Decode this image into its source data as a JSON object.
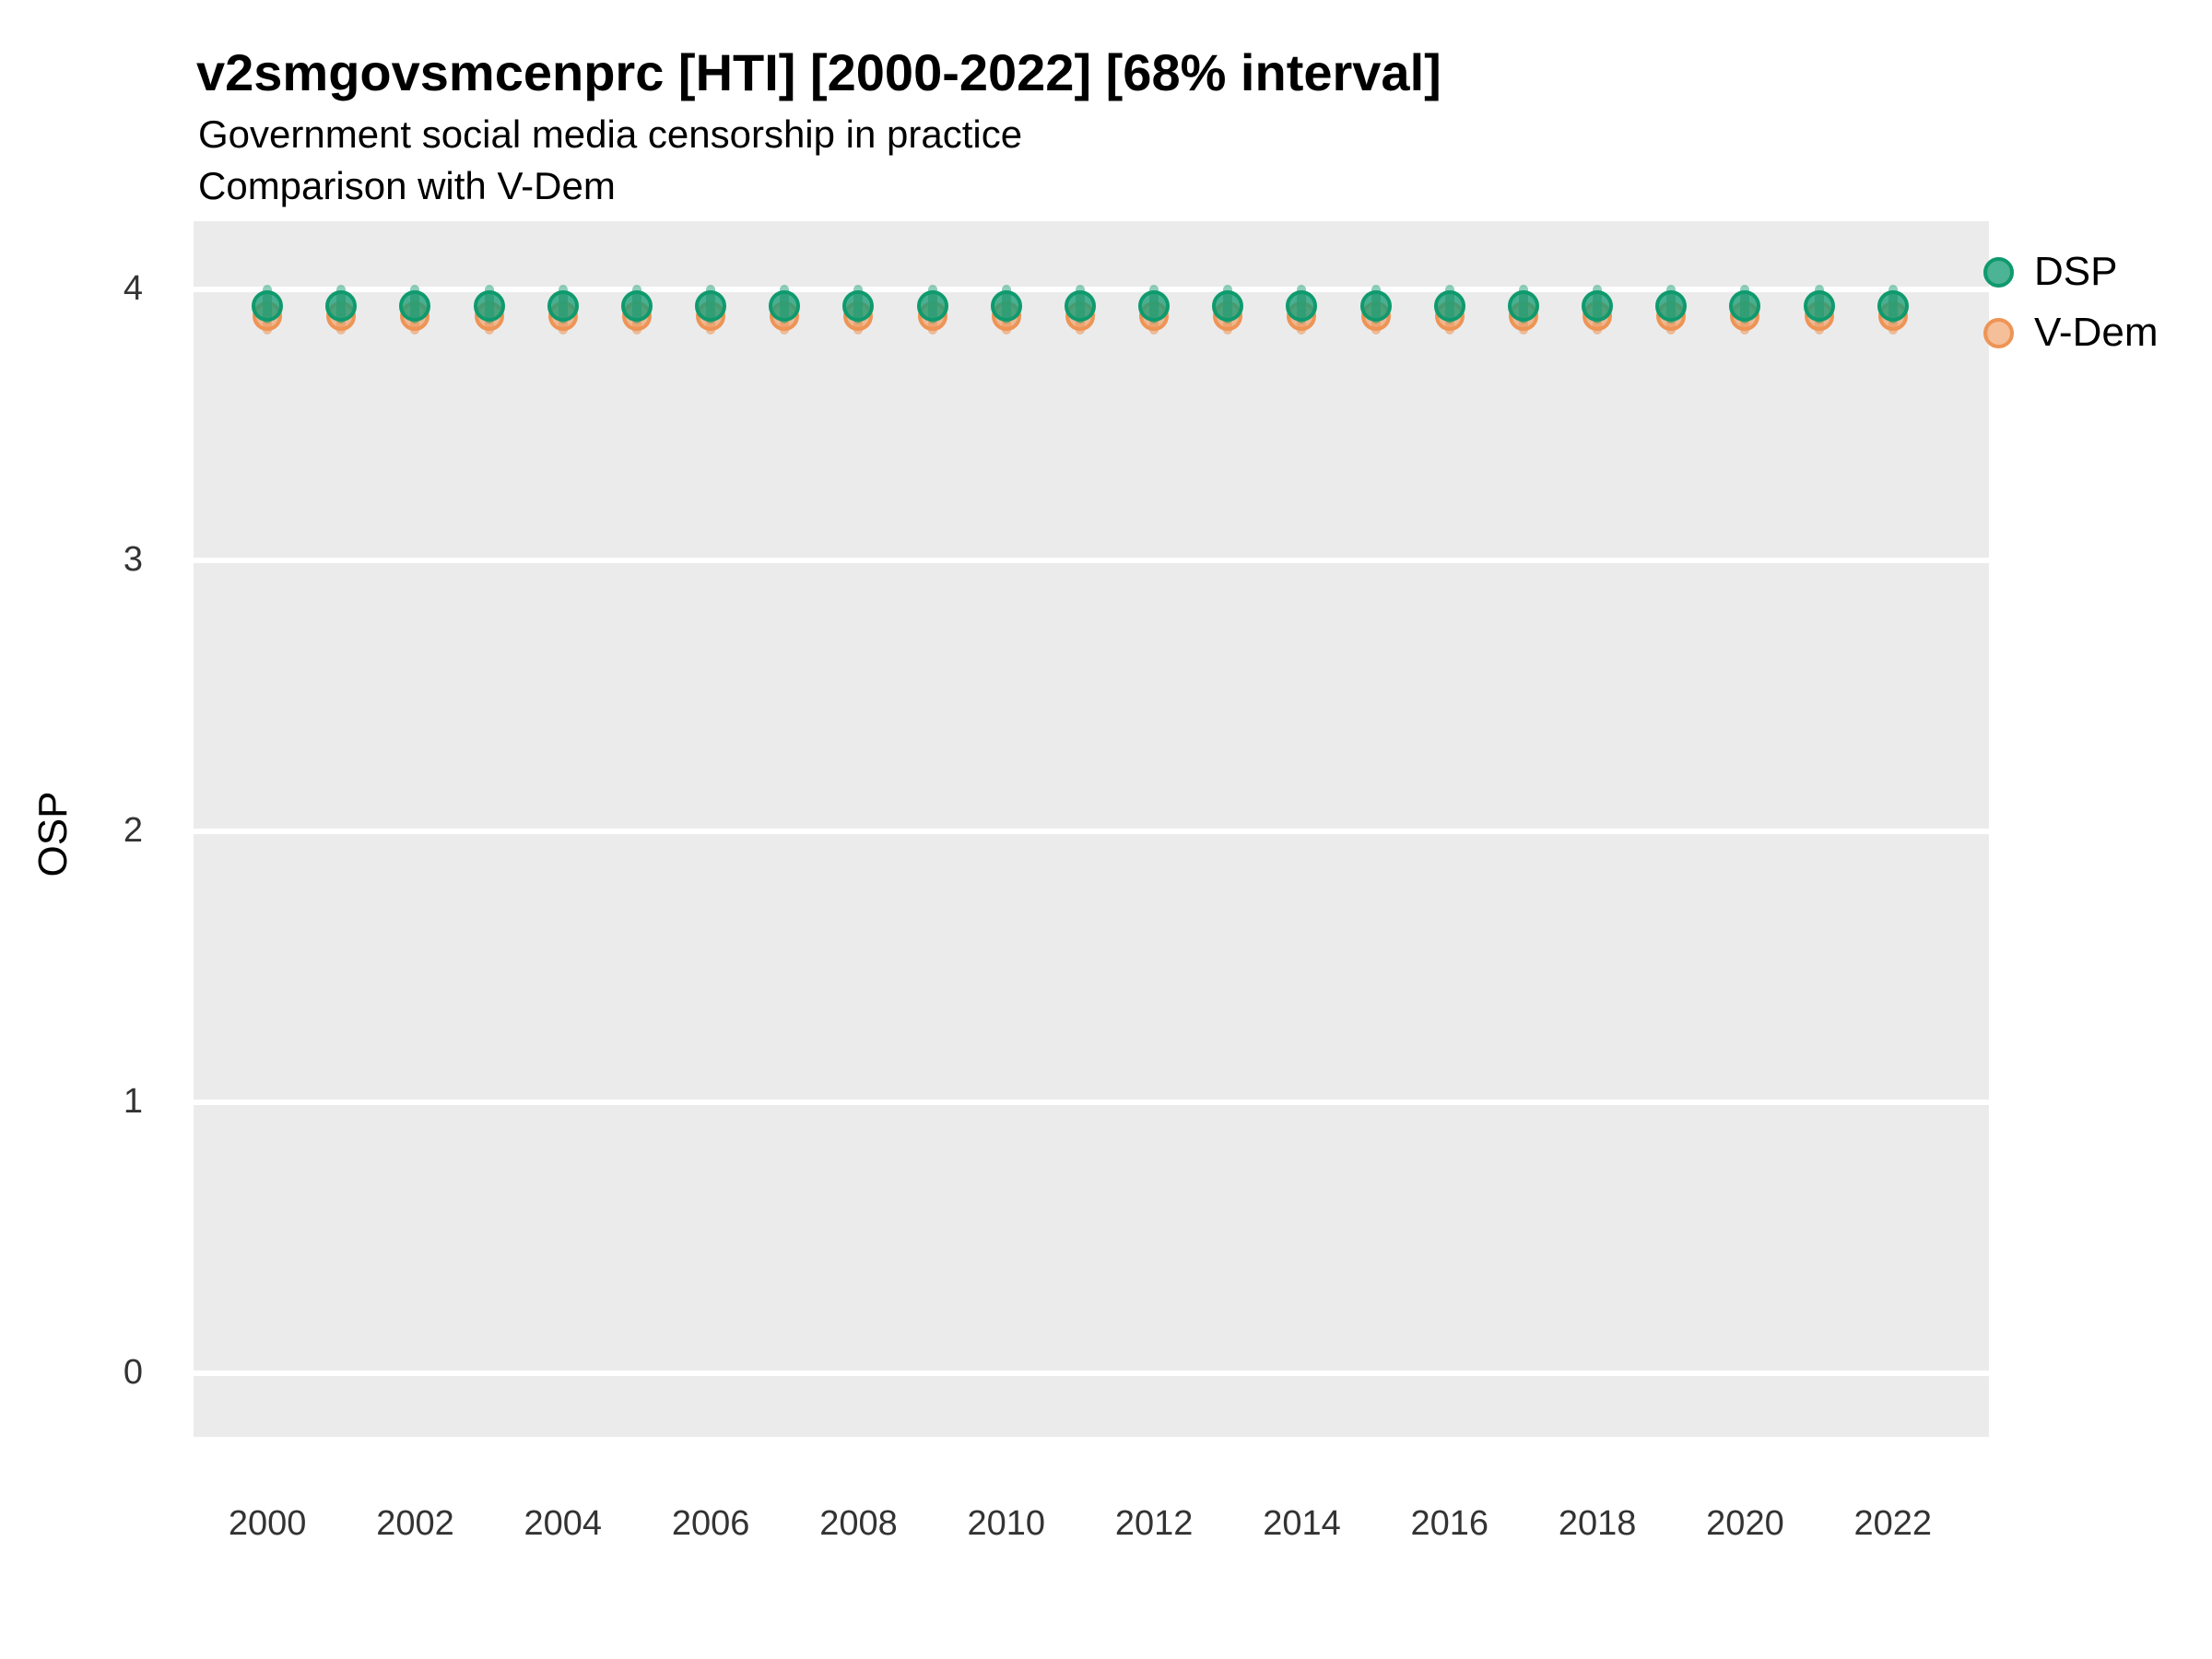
{
  "title": "v2smgovsmcenprc [HTI] [2000-2022] [68% interval]",
  "subtitle_line1": "Government social media censorship in practice",
  "subtitle_line2": "Comparison with V-Dem",
  "y_axis_label": "OSP",
  "legend": {
    "items": [
      {
        "label": "DSP",
        "key": "dsp"
      },
      {
        "label": "V-Dem",
        "key": "vdem"
      }
    ]
  },
  "colors": {
    "panel_bg": "#EBEBEB",
    "grid": "#FFFFFF",
    "title_text": "#000000",
    "tick_text": "#333333",
    "dsp_stroke": "#0F9A6D",
    "dsp_fill": "rgba(27,158,119,0.78)",
    "dsp_interval": "rgba(27,158,119,0.5)",
    "vdem_stroke": "#EE9455",
    "vdem_fill": "rgba(238,148,85,0.6)",
    "vdem_interval": "rgba(236,147,84,0.55)"
  },
  "chart_data": {
    "type": "scatter",
    "title": "v2smgovsmcenprc [HTI] [2000-2022] [68% interval]",
    "subtitle": [
      "Government social media censorship in practice",
      "Comparison with V-Dem"
    ],
    "xlabel": "",
    "ylabel": "OSP",
    "x": [
      2000,
      2001,
      2002,
      2003,
      2004,
      2005,
      2006,
      2007,
      2008,
      2009,
      2010,
      2011,
      2012,
      2013,
      2014,
      2015,
      2016,
      2017,
      2018,
      2019,
      2020,
      2021,
      2022
    ],
    "series": [
      {
        "name": "DSP",
        "key": "dsp",
        "values": [
          3.94,
          3.94,
          3.94,
          3.94,
          3.94,
          3.94,
          3.94,
          3.94,
          3.94,
          3.94,
          3.94,
          3.94,
          3.94,
          3.94,
          3.94,
          3.94,
          3.94,
          3.94,
          3.94,
          3.94,
          3.94,
          3.94,
          3.94
        ],
        "lower": [
          3.89,
          3.89,
          3.89,
          3.89,
          3.89,
          3.89,
          3.89,
          3.89,
          3.89,
          3.89,
          3.89,
          3.89,
          3.89,
          3.89,
          3.89,
          3.89,
          3.89,
          3.89,
          3.89,
          3.89,
          3.89,
          3.89,
          3.89
        ],
        "upper": [
          4.0,
          4.0,
          4.0,
          4.0,
          4.0,
          4.0,
          4.0,
          4.0,
          4.0,
          4.0,
          4.0,
          4.0,
          4.0,
          4.0,
          4.0,
          4.0,
          4.0,
          4.0,
          4.0,
          4.0,
          4.0,
          4.0,
          4.0
        ]
      },
      {
        "name": "V-Dem",
        "key": "vdem",
        "values": [
          3.9,
          3.9,
          3.9,
          3.9,
          3.9,
          3.9,
          3.9,
          3.9,
          3.9,
          3.9,
          3.9,
          3.9,
          3.9,
          3.9,
          3.9,
          3.9,
          3.9,
          3.9,
          3.9,
          3.9,
          3.9,
          3.9,
          3.9
        ],
        "lower": [
          3.85,
          3.85,
          3.85,
          3.85,
          3.85,
          3.85,
          3.85,
          3.85,
          3.85,
          3.85,
          3.85,
          3.85,
          3.85,
          3.85,
          3.85,
          3.85,
          3.85,
          3.85,
          3.85,
          3.85,
          3.85,
          3.85,
          3.85
        ],
        "upper": [
          3.97,
          3.97,
          3.97,
          3.97,
          3.97,
          3.97,
          3.97,
          3.97,
          3.97,
          3.97,
          3.97,
          3.97,
          3.97,
          3.97,
          3.97,
          3.97,
          3.97,
          3.97,
          3.97,
          3.97,
          3.97,
          3.97,
          3.97
        ]
      }
    ],
    "axes": {
      "yticks": [
        0,
        1,
        2,
        3,
        4
      ],
      "xticks": [
        2000,
        2002,
        2004,
        2006,
        2008,
        2010,
        2012,
        2014,
        2016,
        2018,
        2020,
        2022
      ],
      "ylim": [
        -0.235,
        4.252
      ],
      "xlim": [
        1999.0,
        2023.3
      ],
      "grid": "major-horizontal-only",
      "legend_position": "right"
    }
  }
}
